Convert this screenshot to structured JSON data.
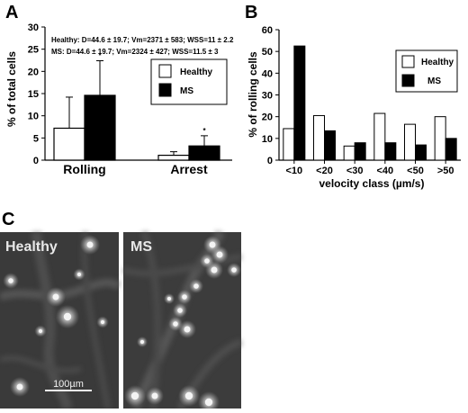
{
  "figure": {
    "panel_a": "A",
    "panel_b": "B",
    "panel_c": "C"
  },
  "chart_data": [
    {
      "type": "bar",
      "panel": "A",
      "categories": [
        "Rolling",
        "Arrest"
      ],
      "series": [
        {
          "name": "Healthy",
          "values": [
            7.2,
            1.1
          ],
          "errors": [
            7.0,
            0.8
          ],
          "color": "#ffffff"
        },
        {
          "name": "MS",
          "values": [
            14.6,
            3.2
          ],
          "errors": [
            7.8,
            2.3
          ],
          "color": "#000000"
        }
      ],
      "significance": [
        {
          "category": "Rolling",
          "series": "MS",
          "mark": "*"
        },
        {
          "category": "Arrest",
          "series": "MS",
          "mark": "*"
        }
      ],
      "annotations": [
        "Healthy: D=44.6 ± 19.7; Vm=2371 ± 583; WSS=11 ± 2.2",
        "MS:  D=44.6 ± 19.7; Vm=2324 ± 427; WSS=11.5 ± 3"
      ],
      "ylabel": "% of total cells",
      "xlabel": "",
      "ylim": [
        0,
        30
      ],
      "yticks": [
        0,
        5,
        10,
        15,
        20,
        25,
        30
      ],
      "legend_position": "top-right"
    },
    {
      "type": "bar",
      "panel": "B",
      "categories": [
        "<10",
        "<20",
        "<30",
        "<40",
        "<50",
        ">50"
      ],
      "series": [
        {
          "name": "Healthy",
          "values": [
            14.5,
            20.5,
            6.5,
            21.5,
            16.5,
            20.0
          ],
          "color": "#ffffff"
        },
        {
          "name": "MS",
          "values": [
            52.5,
            13.5,
            8.0,
            8.0,
            7.0,
            10.0
          ],
          "color": "#000000"
        }
      ],
      "ylabel": "% of rolling cells",
      "xlabel": "velocity class (µm/s)",
      "ylim": [
        0,
        60
      ],
      "yticks": [
        0,
        10,
        20,
        30,
        40,
        50,
        60
      ],
      "legend_position": "top-right"
    }
  ],
  "images": [
    {
      "label": "Healthy",
      "scale_bar": "100µm"
    },
    {
      "label": "MS"
    }
  ]
}
